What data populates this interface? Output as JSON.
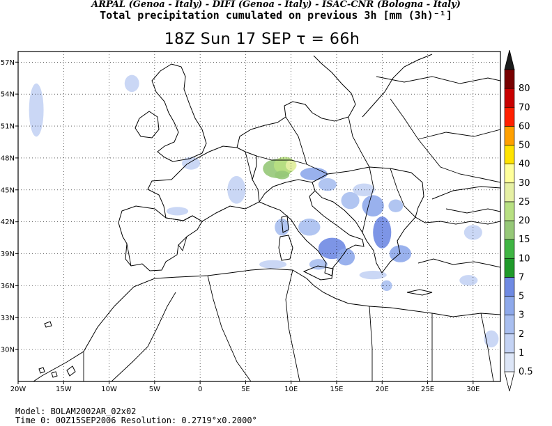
{
  "header": {
    "credits": "ARPAL (Genoa - Italy)  -  DIFI (Genoa - Italy)  -  ISAC-CNR (Bologna - Italy)",
    "title": "Total precipitation cumulated on previous 3h [mm (3h)⁻¹]",
    "subtitle": "18Z Sun 17 SEP  τ = 66h"
  },
  "footer": {
    "model": "Model: BOLAM2002AR_02x02",
    "time": "Time 0: 00Z15SEP2006    Resolution: 0.2719°x0.2000°"
  },
  "map": {
    "lon_range": [
      -20,
      33
    ],
    "lat_range": [
      27,
      58
    ],
    "lat_ticks": [
      {
        "value": 57,
        "label": "57N"
      },
      {
        "value": 54,
        "label": "54N"
      },
      {
        "value": 51,
        "label": "51N"
      },
      {
        "value": 48,
        "label": "48N"
      },
      {
        "value": 45,
        "label": "45N"
      },
      {
        "value": 42,
        "label": "42N"
      },
      {
        "value": 39,
        "label": "39N"
      },
      {
        "value": 36,
        "label": "36N"
      },
      {
        "value": 33,
        "label": "33N"
      },
      {
        "value": 30,
        "label": "30N"
      }
    ],
    "lon_ticks": [
      {
        "value": -20,
        "label": "20W"
      },
      {
        "value": -15,
        "label": "15W"
      },
      {
        "value": -10,
        "label": "10W"
      },
      {
        "value": -5,
        "label": "5W"
      },
      {
        "value": 0,
        "label": "0"
      },
      {
        "value": 5,
        "label": "5E"
      },
      {
        "value": 10,
        "label": "10E"
      },
      {
        "value": 15,
        "label": "15E"
      },
      {
        "value": 20,
        "label": "20E"
      },
      {
        "value": 25,
        "label": "25E"
      },
      {
        "value": 30,
        "label": "30E"
      }
    ]
  },
  "colorbar": {
    "levels": [
      {
        "label": "0.5",
        "color": "#dde6f7"
      },
      {
        "label": "1",
        "color": "#c4d3f4"
      },
      {
        "label": "2",
        "color": "#a9bff0"
      },
      {
        "label": "3",
        "color": "#8ea9eb"
      },
      {
        "label": "5",
        "color": "#6f8ae3"
      },
      {
        "label": "7",
        "color": "#1f9a2a"
      },
      {
        "label": "10",
        "color": "#3fb543"
      },
      {
        "label": "15",
        "color": "#96c878"
      },
      {
        "label": "20",
        "color": "#b8e082"
      },
      {
        "label": "25",
        "color": "#e6f0a4"
      },
      {
        "label": "30",
        "color": "#ffff9a"
      },
      {
        "label": "40",
        "color": "#ffe300"
      },
      {
        "label": "50",
        "color": "#ffa000"
      },
      {
        "label": "60",
        "color": "#ff2000"
      },
      {
        "label": "70",
        "color": "#c80000"
      },
      {
        "label": "80",
        "color": "#780000"
      }
    ],
    "top_color": "#1c1c1c"
  },
  "precip_areas": [
    {
      "lon": 8.5,
      "lat": 47.0,
      "rx": 1.6,
      "ry": 0.9,
      "level": 7
    },
    {
      "lon": 9.3,
      "lat": 47.3,
      "rx": 1.2,
      "ry": 0.8,
      "level": 8
    },
    {
      "lon": 10.0,
      "lat": 47.3,
      "rx": 0.6,
      "ry": 0.5,
      "level": 9
    },
    {
      "lon": 9.0,
      "lat": 46.4,
      "rx": 0.8,
      "ry": 0.4,
      "level": 7
    },
    {
      "lon": 12.5,
      "lat": 46.5,
      "rx": 1.5,
      "ry": 0.6,
      "level": 3
    },
    {
      "lon": 14.0,
      "lat": 45.5,
      "rx": 1.0,
      "ry": 0.6,
      "level": 2
    },
    {
      "lon": 16.5,
      "lat": 44.0,
      "rx": 1.0,
      "ry": 0.8,
      "level": 2
    },
    {
      "lon": 19.0,
      "lat": 43.5,
      "rx": 1.2,
      "ry": 1.0,
      "level": 3
    },
    {
      "lon": 20.0,
      "lat": 41.0,
      "rx": 1.0,
      "ry": 1.5,
      "level": 4
    },
    {
      "lon": 21.5,
      "lat": 43.5,
      "rx": 0.8,
      "ry": 0.6,
      "level": 2
    },
    {
      "lon": 22.0,
      "lat": 39.0,
      "rx": 1.2,
      "ry": 0.8,
      "level": 3
    },
    {
      "lon": 14.5,
      "lat": 39.5,
      "rx": 1.5,
      "ry": 1.0,
      "level": 4
    },
    {
      "lon": 16.0,
      "lat": 38.7,
      "rx": 1.0,
      "ry": 0.8,
      "level": 3
    },
    {
      "lon": 13.0,
      "lat": 38.0,
      "rx": 1.0,
      "ry": 0.5,
      "level": 2
    },
    {
      "lon": 9.0,
      "lat": 41.5,
      "rx": 0.8,
      "ry": 0.8,
      "level": 2
    },
    {
      "lon": 12.0,
      "lat": 41.5,
      "rx": 1.2,
      "ry": 0.8,
      "level": 2
    },
    {
      "lon": 8.0,
      "lat": 38.0,
      "rx": 1.5,
      "ry": 0.4,
      "level": 1
    },
    {
      "lon": 19.0,
      "lat": 37.0,
      "rx": 1.5,
      "ry": 0.4,
      "level": 1
    },
    {
      "lon": 20.5,
      "lat": 36.0,
      "rx": 0.6,
      "ry": 0.5,
      "level": 2
    },
    {
      "lon": 4.0,
      "lat": 45.0,
      "rx": 1.0,
      "ry": 1.3,
      "level": 1
    },
    {
      "lon": -1.0,
      "lat": 47.5,
      "rx": 1.0,
      "ry": 0.6,
      "level": 1
    },
    {
      "lon": -2.5,
      "lat": 43.0,
      "rx": 1.2,
      "ry": 0.4,
      "level": 1
    },
    {
      "lon": -18.0,
      "lat": 52.5,
      "rx": 0.8,
      "ry": 2.5,
      "level": 1
    },
    {
      "lon": -7.5,
      "lat": 55.0,
      "rx": 0.8,
      "ry": 0.8,
      "level": 1
    },
    {
      "lon": 30.0,
      "lat": 41.0,
      "rx": 1.0,
      "ry": 0.7,
      "level": 1
    },
    {
      "lon": 29.5,
      "lat": 36.5,
      "rx": 1.0,
      "ry": 0.5,
      "level": 1
    },
    {
      "lon": 32.0,
      "lat": 31.0,
      "rx": 0.8,
      "ry": 0.8,
      "level": 1
    },
    {
      "lon": 18.0,
      "lat": 45.0,
      "rx": 1.2,
      "ry": 0.6,
      "level": 1
    }
  ]
}
